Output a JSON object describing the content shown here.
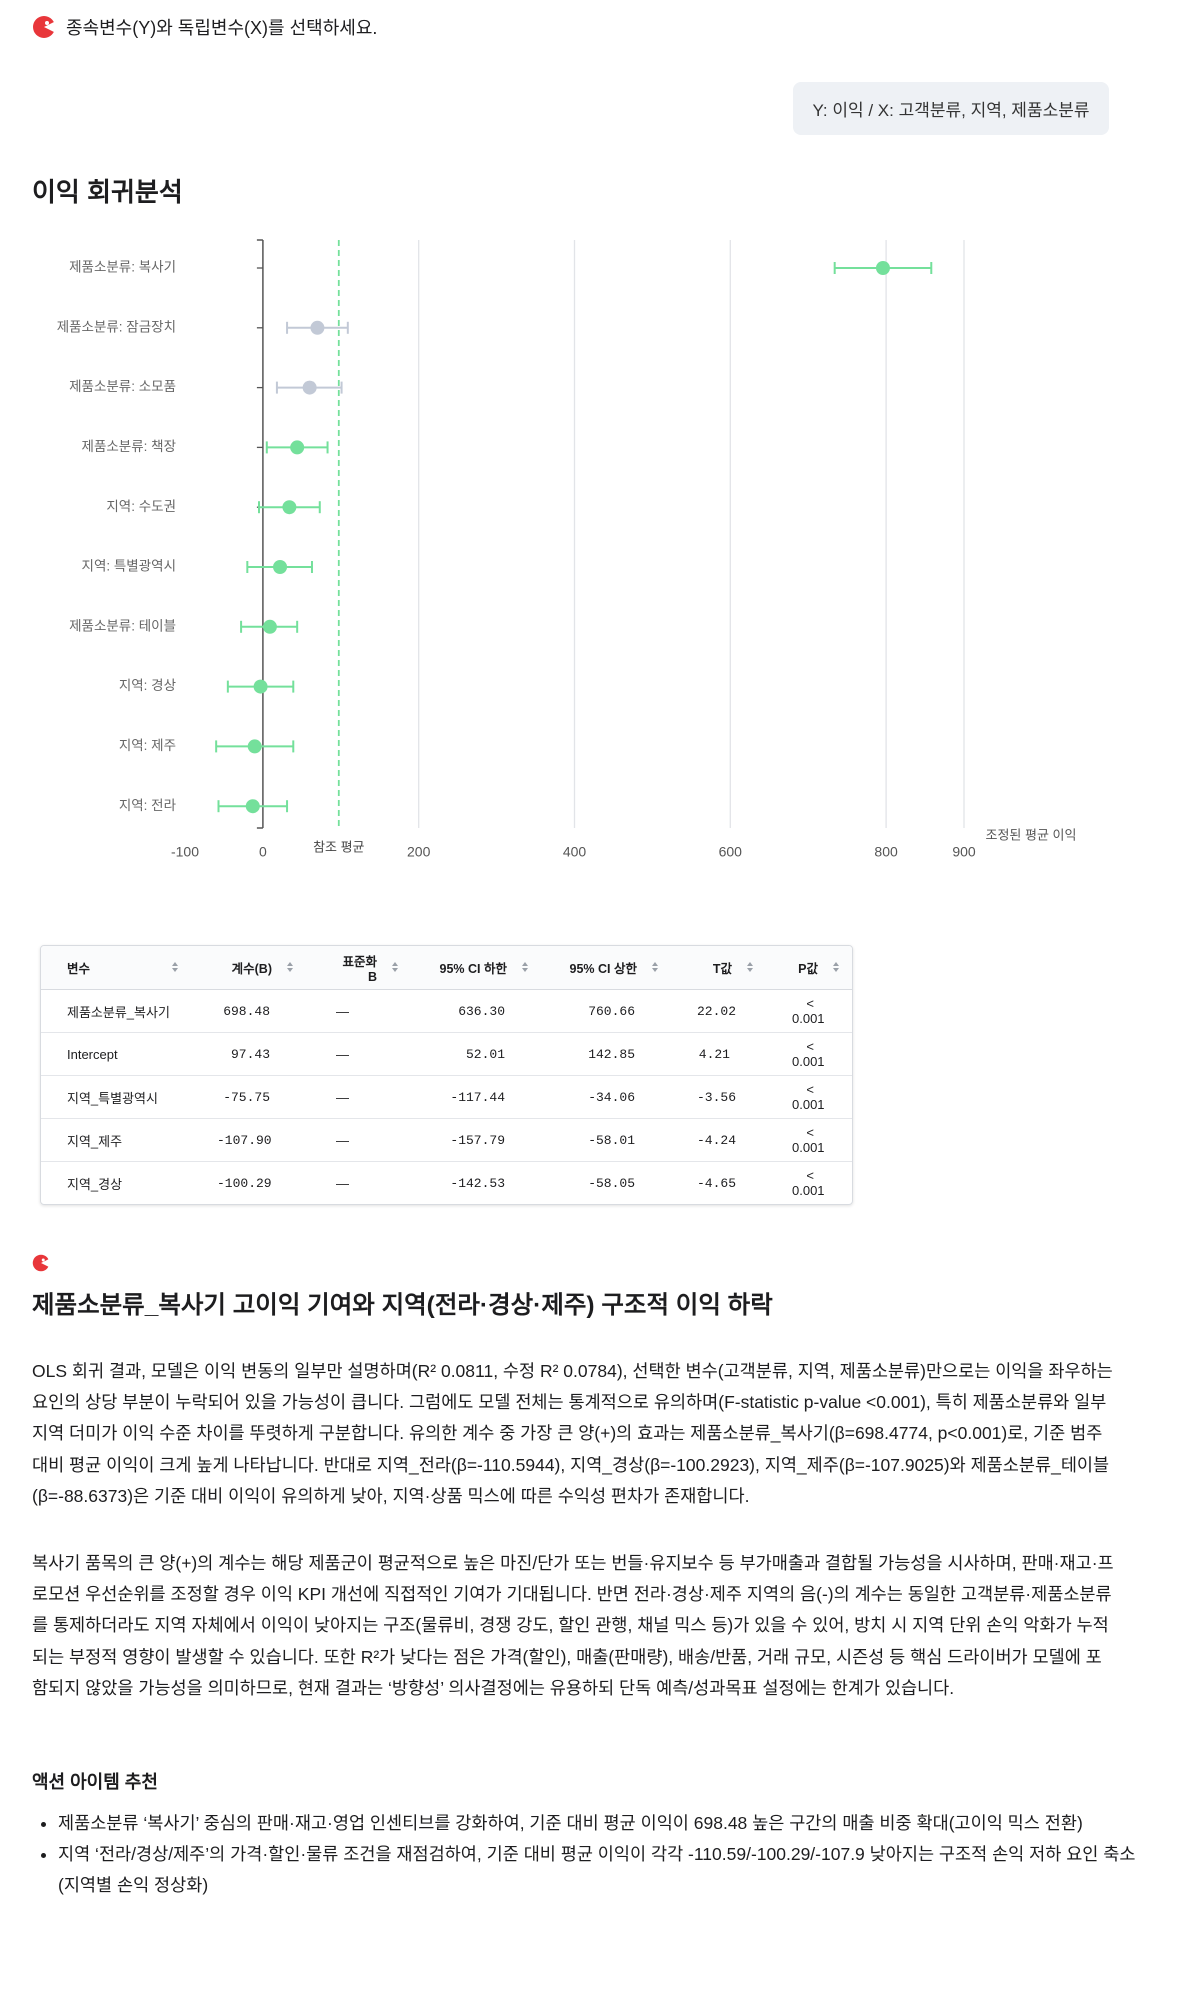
{
  "header": {
    "text": "종속변수(Y)와 독립변수(X)를 선택하세요."
  },
  "user_message": "Y: 이익 / X: 고객분류, 지역, 제품소분류",
  "title": "이익 회귀분석",
  "chart_data": {
    "type": "dot-ci",
    "categories": [
      "제품소분류: 복사기",
      "제품소분류: 잠금장치",
      "제품소분류: 소모품",
      "제품소분류: 책장",
      "지역: 수도권",
      "지역: 특별광역시",
      "제품소분류: 테이블",
      "지역: 경상",
      "지역: 제주",
      "지역: 전라"
    ],
    "values": [
      796,
      70,
      60,
      44,
      34,
      22,
      9,
      -3,
      -10.5,
      -13
    ],
    "ci_low": [
      734,
      31,
      18,
      5,
      -5,
      -20,
      -28,
      -45,
      -60,
      -57
    ],
    "ci_high": [
      858,
      109,
      101,
      83,
      73,
      63,
      44,
      39,
      39,
      31
    ],
    "colors": [
      "#74e09b",
      "#c2c9d6",
      "#c2c9d6",
      "#74e09b",
      "#74e09b",
      "#74e09b",
      "#74e09b",
      "#74e09b",
      "#74e09b",
      "#74e09b"
    ],
    "reference": {
      "value": 97.43,
      "label": "참조 평균",
      "color": "#74e09b"
    },
    "xlabel": "조정된 평균 이익",
    "xlim": [
      -100,
      900
    ],
    "xticks": [
      -100,
      0,
      200,
      400,
      600,
      800,
      900
    ],
    "grid": true
  },
  "table": {
    "columns": [
      "변수",
      "계수(B)",
      "표준화 B",
      "95% CI 하한",
      "95% CI 상한",
      "T값",
      "P값"
    ],
    "rows": [
      [
        "제품소분류_복사기",
        "698.48",
        "—",
        "636.30",
        "760.66",
        "22.02",
        "< 0.001"
      ],
      [
        "Intercept",
        "97.43",
        "—",
        "52.01",
        "142.85",
        "4.21",
        "< 0.001"
      ],
      [
        "지역_특별광역시",
        "-75.75",
        "—",
        "-117.44",
        "-34.06",
        "-3.56",
        "< 0.001"
      ],
      [
        "지역_제주",
        "-107.90",
        "—",
        "-157.79",
        "-58.01",
        "-4.24",
        "< 0.001"
      ],
      [
        "지역_경상",
        "-100.29",
        "—",
        "-142.53",
        "-58.05",
        "-4.65",
        "< 0.001"
      ]
    ]
  },
  "report": {
    "title": "제품소분류_복사기 고이익 기여와 지역(전라·경상·제주) 구조적 이익 하락",
    "paragraphs": [
      "OLS 회귀 결과, 모델은 이익 변동의 일부만 설명하며(R² 0.0811, 수정 R² 0.0784), 선택한 변수(고객분류, 지역, 제품소분류)만으로는 이익을 좌우하는 요인의 상당 부분이 누락되어 있을 가능성이 큽니다. 그럼에도 모델 전체는 통계적으로 유의하며(F-statistic p-value <0.001), 특히 제품소분류와 일부 지역 더미가 이익 수준 차이를 뚜렷하게 구분합니다. 유의한 계수 중 가장 큰 양(+)의 효과는 제품소분류_복사기(β=698.4774, p<0.001)로, 기준 범주 대비 평균 이익이 크게 높게 나타납니다. 반대로 지역_전라(β=-110.5944), 지역_경상(β=-100.2923), 지역_제주(β=-107.9025)와 제품소분류_테이블(β=-88.6373)은 기준 대비 이익이 유의하게 낮아, 지역·상품 믹스에 따른 수익성 편차가 존재합니다.",
      "복사기 품목의 큰 양(+)의 계수는 해당 제품군이 평균적으로 높은 마진/단가 또는 번들·유지보수 등 부가매출과 결합될 가능성을 시사하며, 판매·재고·프로모션 우선순위를 조정할 경우 이익 KPI 개선에 직접적인 기여가 기대됩니다. 반면 전라·경상·제주 지역의 음(-)의 계수는 동일한 고객분류·제품소분류를 통제하더라도 지역 자체에서 이익이 낮아지는 구조(물류비, 경쟁 강도, 할인 관행, 채널 믹스 등)가 있을 수 있어, 방치 시 지역 단위 손익 악화가 누적되는 부정적 영향이 발생할 수 있습니다. 또한 R²가 낮다는 점은 가격(할인), 매출(판매량), 배송/반품, 거래 규모, 시즌성 등 핵심 드라이버가 모델에 포함되지 않았을 가능성을 의미하므로, 현재 결과는 ‘방향성’ 의사결정에는 유용하되 단독 예측/성과목표 설정에는 한계가 있습니다."
    ],
    "action_title": "액션 아이템 추천",
    "actions": [
      "제품소분류 ‘복사기’ 중심의 판매·재고·영업 인센티브를 강화하여, 기준 대비 평균 이익이 698.48 높은 구간의 매출 비중 확대(고이익 믹스 전환)",
      "지역 ‘전라/경상/제주’의 가격·할인·물류 조건을 재점검하여, 기준 대비 평균 이익이 각각 -110.59/-100.29/-107.9 낮아지는 구조적 손익 저하 요인 축소(지역별 손익 정상화)"
    ]
  }
}
